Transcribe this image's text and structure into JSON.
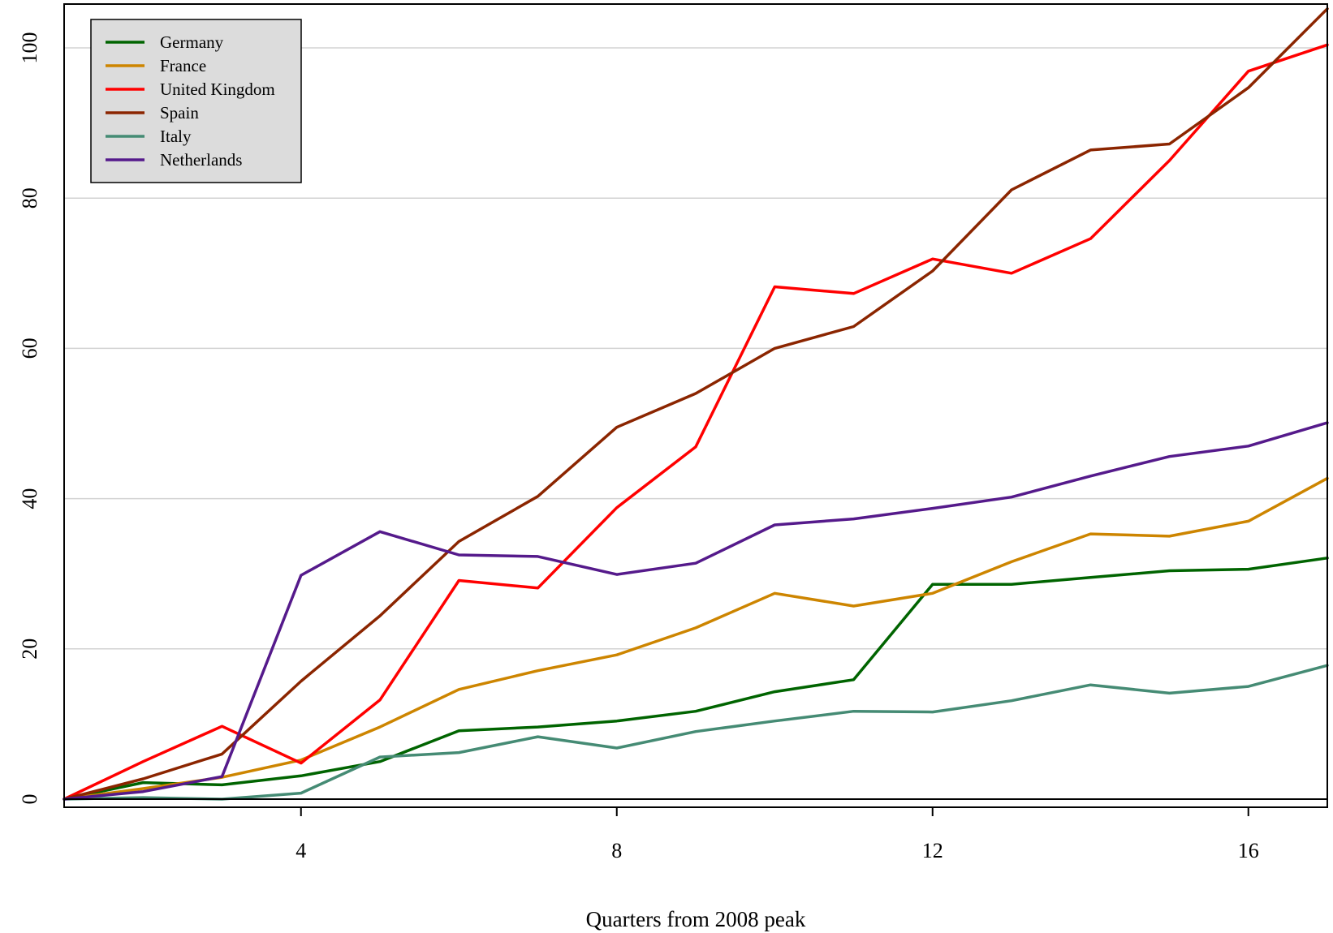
{
  "chart_data": {
    "type": "line",
    "title": "",
    "xlabel": "Quarters from 2008 peak",
    "ylabel": "",
    "xlim": [
      1,
      17
    ],
    "ylim": [
      0,
      105
    ],
    "x_ticks": [
      4,
      8,
      12,
      16
    ],
    "y_ticks": [
      0,
      20,
      40,
      60,
      80,
      100
    ],
    "grid": "horizontal",
    "legend_position": "top-left",
    "x": [
      1,
      2,
      3,
      4,
      5,
      6,
      7,
      8,
      9,
      10,
      11,
      12,
      13,
      14,
      15,
      16,
      17
    ],
    "series": [
      {
        "name": "Germany",
        "color": "#006400",
        "values": [
          0,
          2.2,
          1.9,
          3.1,
          5.0,
          9.1,
          9.6,
          10.4,
          11.7,
          14.3,
          15.9,
          28.6,
          28.6,
          29.5,
          30.4,
          30.6,
          32.1
        ]
      },
      {
        "name": "France",
        "color": "#CD8500",
        "values": [
          0,
          1.4,
          2.9,
          5.2,
          9.6,
          14.6,
          17.1,
          19.2,
          22.8,
          27.4,
          25.7,
          27.4,
          31.6,
          35.3,
          35.0,
          37.0,
          42.7
        ]
      },
      {
        "name": "United Kingdom",
        "color": "#FF0000",
        "values": [
          0,
          5.0,
          9.7,
          4.8,
          13.2,
          29.1,
          28.1,
          38.8,
          46.9,
          68.2,
          67.3,
          71.9,
          70.0,
          74.6,
          85.0,
          96.9,
          100.4
        ]
      },
      {
        "name": "Spain",
        "color": "#8B2500",
        "values": [
          0,
          2.7,
          6.0,
          15.7,
          24.4,
          34.3,
          40.3,
          49.5,
          54.0,
          60.0,
          62.9,
          70.3,
          81.1,
          86.4,
          87.2,
          94.7,
          105.2
        ]
      },
      {
        "name": "Italy",
        "color": "#458B74",
        "values": [
          0,
          0.2,
          0,
          0.8,
          5.6,
          6.2,
          8.3,
          6.8,
          9.0,
          10.4,
          11.7,
          11.6,
          13.1,
          15.2,
          14.1,
          15.0,
          17.8
        ]
      },
      {
        "name": "Netherlands",
        "color": "#551A8B",
        "values": [
          0,
          1.0,
          3.0,
          29.8,
          35.6,
          32.5,
          32.3,
          29.9,
          31.4,
          36.5,
          37.3,
          38.7,
          40.2,
          43.0,
          45.6,
          47.0,
          50.1
        ]
      }
    ]
  }
}
